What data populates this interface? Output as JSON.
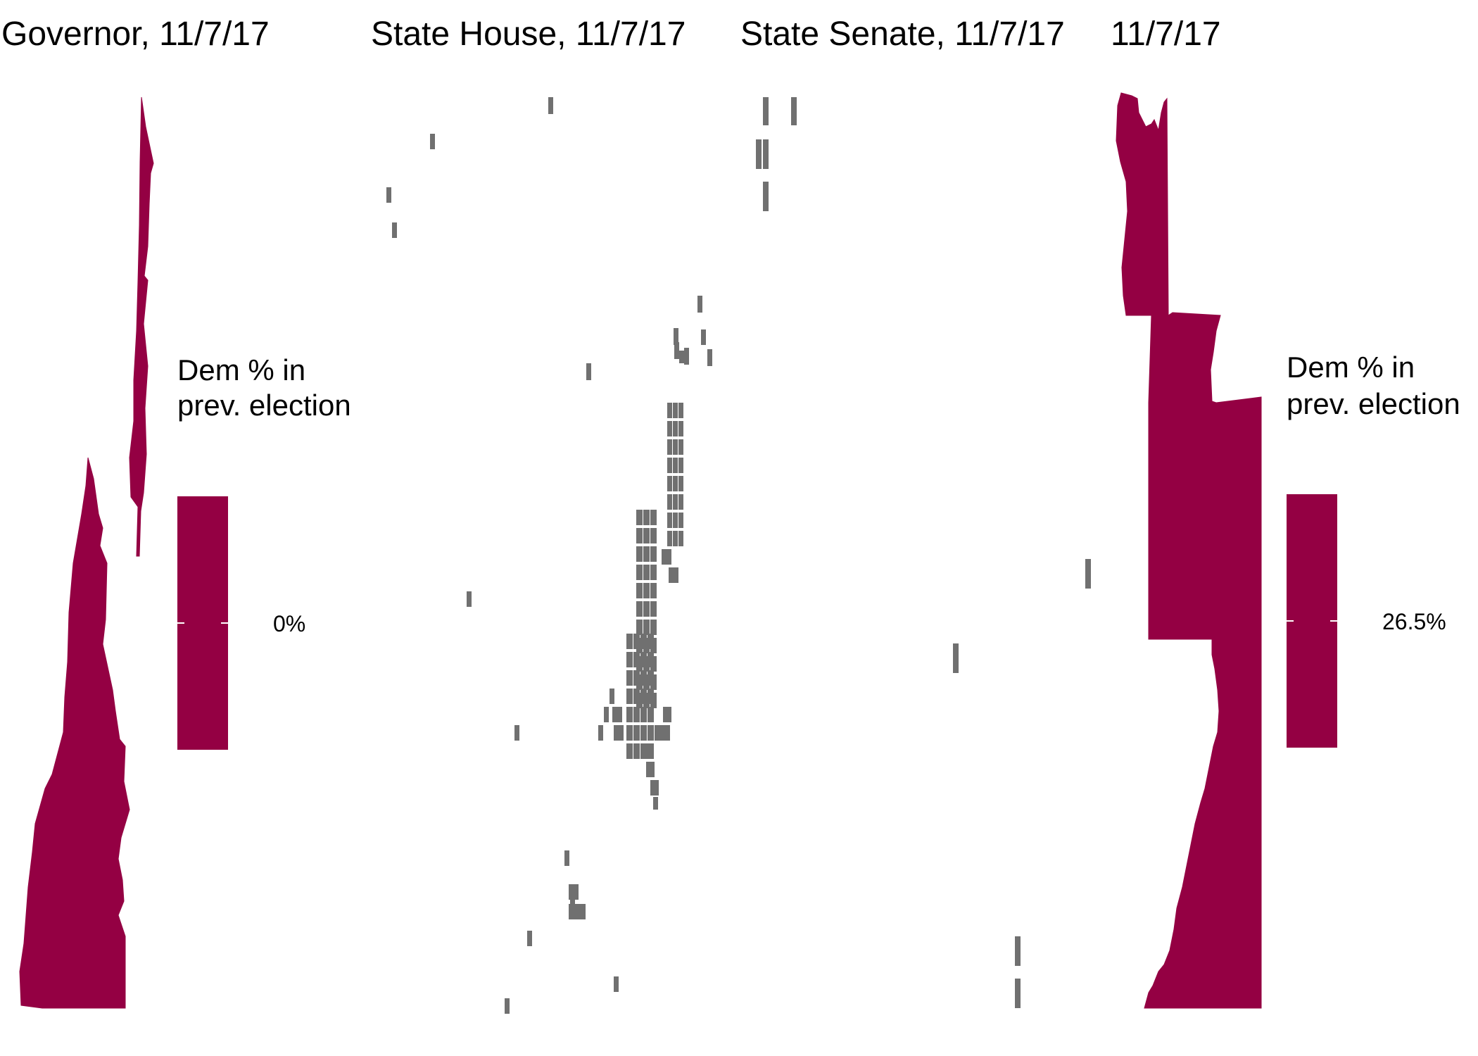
{
  "colors": {
    "dem_fill": "#940043",
    "no_data_fill": "#707070",
    "background": "#ffffff",
    "legend_tick": "#ffffff"
  },
  "panels": {
    "governor": {
      "title": "Governor, 11/7/17"
    },
    "state_house": {
      "title": "State House, 11/7/17"
    },
    "state_senate": {
      "title": "State Senate, 11/7/17"
    },
    "fourth": {
      "title": "11/7/17"
    }
  },
  "legends": {
    "left": {
      "title_line1": "Dem % in",
      "title_line2": "prev. election",
      "value_label": "0%"
    },
    "right": {
      "title_line1": "Dem % in",
      "title_line2": "prev. election",
      "value_label": "26.5%"
    }
  }
}
